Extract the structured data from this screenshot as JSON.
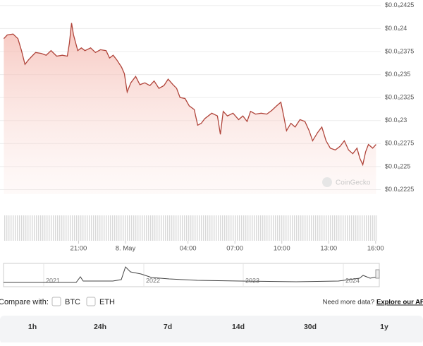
{
  "chart_data": {
    "type": "line",
    "x": [
      16.22,
      16.44,
      16.81,
      17.12,
      17.35,
      17.57,
      17.8,
      18.02,
      18.25,
      18.61,
      18.93,
      19.24,
      19.6,
      19.96,
      20.28,
      20.41,
      20.55,
      20.68,
      20.95,
      21.18,
      21.41,
      21.77,
      22.08,
      22.4,
      22.76,
      22.98,
      23.21,
      23.44,
      23.75,
      23.93,
      24.11,
      24.34,
      24.65,
      24.92,
      25.24,
      25.56,
      25.83,
      26.14,
      26.46,
      26.73,
      27.04,
      27.27,
      27.49,
      27.81,
      28.08,
      28.4,
      28.62,
      28.85,
      29.07,
      29.52,
      29.88,
      30.07,
      30.25,
      30.52,
      30.88,
      31.24,
      31.51,
      31.78,
      32.0,
      32.32,
      32.68,
      33.04,
      33.36,
      33.67,
      33.94,
      34.12,
      34.3,
      34.58,
      34.85,
      35.16,
      35.48,
      35.75,
      35.97,
      36.29,
      36.56,
      36.83,
      37.1,
      37.42,
      37.73,
      38.0,
      38.27,
      38.54,
      38.81,
      38.99,
      39.18,
      39.36,
      39.54,
      39.81,
      40.03
    ],
    "values": [
      2.389e-05,
      2.393e-05,
      2.394e-05,
      2.389e-05,
      2.376e-05,
      2.361e-05,
      2.366e-05,
      2.37e-05,
      2.374e-05,
      2.373e-05,
      2.371e-05,
      2.376e-05,
      2.37e-05,
      2.371e-05,
      2.37e-05,
      2.384e-05,
      2.406e-05,
      2.393e-05,
      2.376e-05,
      2.379e-05,
      2.376e-05,
      2.379e-05,
      2.374e-05,
      2.377e-05,
      2.376e-05,
      2.368e-05,
      2.371e-05,
      2.366e-05,
      2.358e-05,
      2.351e-05,
      2.331e-05,
      2.341e-05,
      2.348e-05,
      2.339e-05,
      2.341e-05,
      2.338e-05,
      2.343e-05,
      2.335e-05,
      2.338e-05,
      2.345e-05,
      2.339e-05,
      2.335e-05,
      2.325e-05,
      2.324e-05,
      2.316e-05,
      2.312e-05,
      2.295e-05,
      2.297e-05,
      2.302e-05,
      2.308e-05,
      2.305e-05,
      2.285e-05,
      2.31e-05,
      2.305e-05,
      2.308e-05,
      2.301e-05,
      2.305e-05,
      2.299e-05,
      2.31e-05,
      2.307e-05,
      2.308e-05,
      2.307e-05,
      2.311e-05,
      2.316e-05,
      2.32e-05,
      2.305e-05,
      2.289e-05,
      2.297e-05,
      2.293e-05,
      2.301e-05,
      2.299e-05,
      2.289e-05,
      2.278e-05,
      2.287e-05,
      2.293e-05,
      2.278e-05,
      2.27e-05,
      2.268e-05,
      2.272e-05,
      2.278e-05,
      2.268e-05,
      2.264e-05,
      2.27e-05,
      2.259e-05,
      2.252e-05,
      2.266e-05,
      2.274e-05,
      2.27e-05,
      2.274e-05
    ],
    "color": "#b0443a",
    "xlim": [
      16.2,
      40.1
    ],
    "ylim": [
      2.22e-05,
      2.431e-05
    ],
    "xticks": [
      {
        "value": 21,
        "label": "21:00"
      },
      {
        "value": 24,
        "label": "8. May"
      },
      {
        "value": 28,
        "label": "04:00"
      },
      {
        "value": 31,
        "label": "07:00"
      },
      {
        "value": 34,
        "label": "10:00"
      },
      {
        "value": 37,
        "label": "13:00"
      },
      {
        "value": 40,
        "label": "16:00"
      }
    ],
    "yticks": [
      {
        "value": 2.425e-05,
        "label": "$0.0₄2425"
      },
      {
        "value": 2.4e-05,
        "label": "$0.0₄24"
      },
      {
        "value": 2.375e-05,
        "label": "$0.0₄2375"
      },
      {
        "value": 2.35e-05,
        "label": "$0.0₄235"
      },
      {
        "value": 2.325e-05,
        "label": "$0.0₄2325"
      },
      {
        "value": 2.3e-05,
        "label": "$0.0₄23"
      },
      {
        "value": 2.275e-05,
        "label": "$0.0₄2275"
      },
      {
        "value": 2.25e-05,
        "label": "$0.0₄225"
      },
      {
        "value": 2.225e-05,
        "label": "$0.0₄2225"
      }
    ],
    "grid": true,
    "watermark": "CoinGecko",
    "navigator_years": [
      "2021",
      "2022",
      "2023",
      "2024"
    ]
  },
  "compare": {
    "label": "Compare with:",
    "options": [
      "BTC",
      "ETH"
    ],
    "note": "Need more data?",
    "link": "Explore our API"
  },
  "tabs": [
    "1h",
    "24h",
    "7d",
    "14d",
    "30d",
    "1y"
  ]
}
